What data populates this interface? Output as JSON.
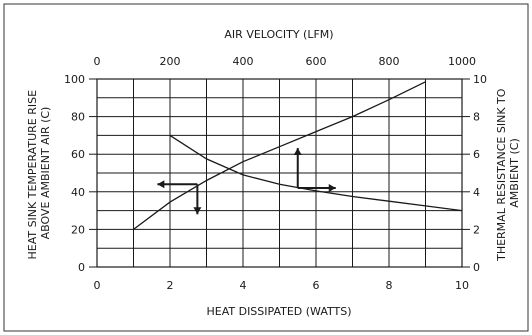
{
  "chart_data": {
    "type": "line",
    "xlabel": "HEAT DISSIPATED (WATTS)",
    "ylabel": "HEAT SINK TEMPERATURE RISE ABOVE AMBIENT AIR (C)",
    "ylabel_lines": [
      "HEAT SINK TEMPERATURE RISE",
      "ABOVE AMBIENT AIR (C)"
    ],
    "x2label": "AIR VELOCITY (LFM)",
    "y2label": "THERMAL RESISTANCE SINK TO AMBIENT (C)",
    "y2label_lines": [
      "THERMAL RESISTANCE SINK TO",
      "AMBIENT (C)"
    ],
    "xlim": [
      0,
      10
    ],
    "ylim": [
      0,
      100
    ],
    "x2lim": [
      0,
      1000
    ],
    "y2lim": [
      0,
      10
    ],
    "xticks": [
      0,
      2,
      4,
      6,
      8,
      10
    ],
    "yticks": [
      0,
      20,
      40,
      60,
      80,
      100
    ],
    "x2ticks": [
      0,
      200,
      400,
      600,
      800,
      1000
    ],
    "y2ticks": [
      0,
      2,
      4,
      6,
      8,
      10
    ],
    "grid": true,
    "series": [
      {
        "axes": "bottom-left",
        "x": [
          1,
          2,
          3,
          4,
          5,
          6,
          7,
          8,
          9
        ],
        "y": [
          20,
          34.5,
          46,
          56,
          64,
          72,
          80,
          89,
          98.5
        ]
      },
      {
        "axes": "top-right",
        "x": [
          200,
          300,
          400,
          500,
          600,
          700,
          800,
          900,
          1000
        ],
        "y": [
          7.0,
          5.75,
          4.9,
          4.4,
          4.05,
          3.75,
          3.5,
          3.25,
          3.0
        ]
      }
    ],
    "annotations": [
      {
        "type": "arrow-pair",
        "origin": [
          2.75,
          44
        ],
        "arrows": [
          "left",
          "down"
        ]
      },
      {
        "type": "arrow-pair",
        "origin": [
          5.5,
          42
        ],
        "arrows": [
          "up",
          "right"
        ]
      }
    ]
  }
}
